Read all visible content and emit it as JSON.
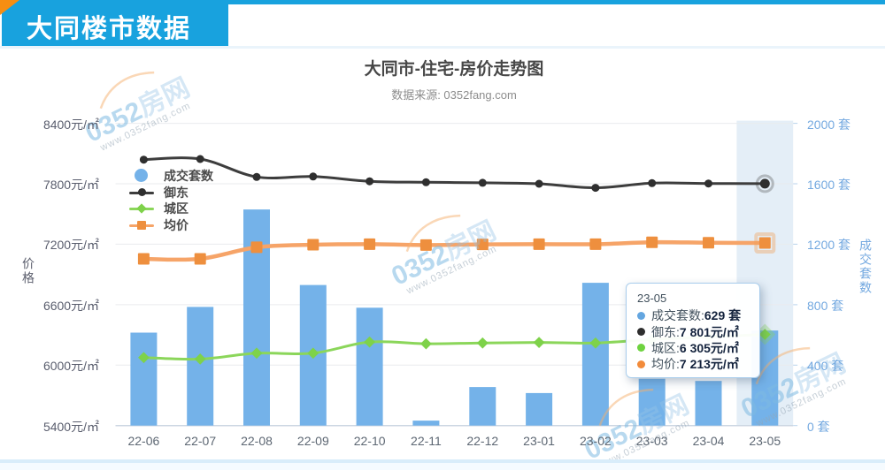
{
  "header": {
    "title": "大同楼市数据"
  },
  "chart": {
    "title": "大同市-住宅-房价走势图",
    "subtitle": "数据来源: 0352fang.com"
  },
  "watermark": {
    "brand_num": "0352",
    "brand_cn": "房网",
    "url": "www.0352fang.com"
  },
  "colors": {
    "header_blue": "#18a2de",
    "corner_orange": "#f78e12",
    "bar_blue": "#74b2e9",
    "line_dark": "#3d3d3d",
    "line_green": "#8bd65a",
    "green_marker": "#7ed24a",
    "line_orange": "#f6a468",
    "orange_marker": "#ee8f3e",
    "grid": "#e9ebee",
    "axis_line": "#ccd6e2",
    "highlight_band": "rgba(185,210,235,0.38)"
  },
  "legend": [
    {
      "label": "成交套数",
      "marker": "circle",
      "color": "#74b2e9"
    },
    {
      "label": "御东",
      "marker": "line-circle",
      "color": "#3d3d3d",
      "marker_color": "#2f2f2f"
    },
    {
      "label": "城区",
      "marker": "line-diamond",
      "color": "#8bd65a",
      "marker_color": "#7ed24a"
    },
    {
      "label": "均价",
      "marker": "line-square",
      "color": "#f6a468",
      "marker_color": "#ee8f3e"
    }
  ],
  "chart_data": {
    "type": "bar+line",
    "categories": [
      "22-06",
      "22-07",
      "22-08",
      "22-09",
      "22-10",
      "22-11",
      "22-12",
      "23-01",
      "23-02",
      "23-03",
      "23-04",
      "23-05"
    ],
    "series": [
      {
        "name": "成交套数",
        "type": "bar",
        "axis": "right",
        "color": "#74b2e9",
        "values": [
          615,
          785,
          1430,
          930,
          780,
          33,
          255,
          215,
          945,
          310,
          295,
          629
        ]
      },
      {
        "name": "御东",
        "type": "line",
        "axis": "left",
        "marker": "circle",
        "color": "#3d3d3d",
        "marker_color": "#2f2f2f",
        "values": [
          8040,
          8046,
          7868,
          7872,
          7825,
          7815,
          7810,
          7800,
          7760,
          7806,
          7803,
          7801
        ]
      },
      {
        "name": "城区",
        "type": "line",
        "axis": "left",
        "marker": "diamond",
        "color": "#8bd65a",
        "marker_color": "#7ed24a",
        "values": [
          6075,
          6060,
          6118,
          6118,
          6230,
          6212,
          6220,
          6225,
          6220,
          6255,
          6280,
          6305
        ]
      },
      {
        "name": "均价",
        "type": "line",
        "axis": "left",
        "marker": "square",
        "color": "#f6a468",
        "marker_color": "#ee8f3e",
        "values": [
          7055,
          7055,
          7170,
          7195,
          7200,
          7192,
          7199,
          7200,
          7200,
          7220,
          7215,
          7213
        ]
      }
    ],
    "left_axis": {
      "name": "价格",
      "min": 5400,
      "max": 8400,
      "ticks": [
        {
          "v": 8400,
          "label": "8400元/㎡"
        },
        {
          "v": 7800,
          "label": "7800元/㎡"
        },
        {
          "v": 7200,
          "label": "7200元/㎡"
        },
        {
          "v": 6600,
          "label": "6600元/㎡"
        },
        {
          "v": 6000,
          "label": "6000元/㎡"
        },
        {
          "v": 5400,
          "label": "5400元/㎡"
        }
      ]
    },
    "right_axis": {
      "name": "成交套数",
      "min": 0,
      "max": 2000,
      "ticks": [
        {
          "v": 2000,
          "label": "2000 套"
        },
        {
          "v": 1600,
          "label": "1600 套"
        },
        {
          "v": 1200,
          "label": "1200 套"
        },
        {
          "v": 800,
          "label": "800 套"
        },
        {
          "v": 400,
          "label": "400 套"
        },
        {
          "v": 0,
          "label": "0 套"
        }
      ]
    },
    "highlighted_category": "23-05",
    "grid_on": true,
    "legend_position": "left-top-vertical"
  },
  "tooltip": {
    "title": "23-05",
    "rows": [
      {
        "label": "成交套数",
        "sep": ": ",
        "value": "629 套",
        "color": "#64a6e0"
      },
      {
        "label": "御东",
        "sep": ": ",
        "value": "7 801元/㎡",
        "color": "#2e2e2e"
      },
      {
        "label": "城区",
        "sep": ": ",
        "value": "6 305元/㎡",
        "color": "#6ed33f"
      },
      {
        "label": "均价",
        "sep": ": ",
        "value": "7 213元/㎡",
        "color": "#f28b3b"
      }
    ]
  }
}
